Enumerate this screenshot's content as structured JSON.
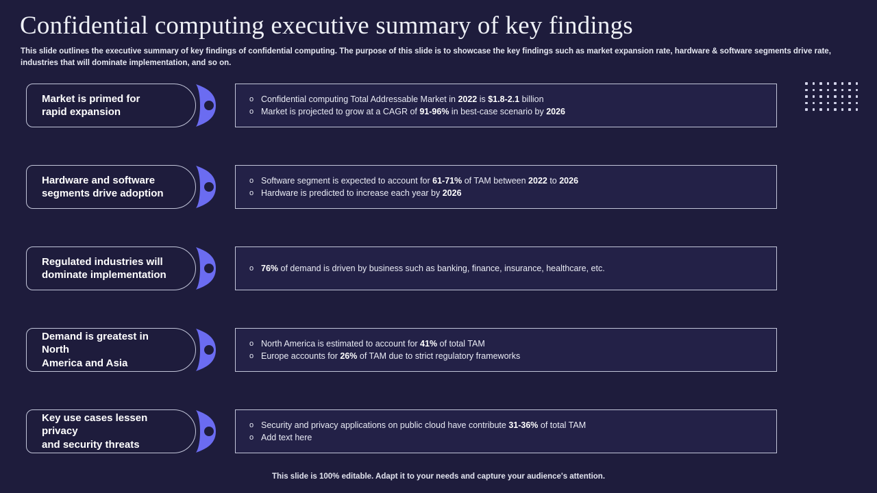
{
  "page": {
    "title": "Confidential computing executive summary of key findings",
    "subtitle": "This slide outlines the executive summary of key findings of confidential computing. The purpose of this slide is to showcase the key findings such as market expansion rate, hardware & software segments drive rate, industries that will dominate implementation, and so on.",
    "footer": "This slide is 100% editable. Adapt it to your needs and capture your audience's attention."
  },
  "colors": {
    "background": "#1e1c3c",
    "box_background": "#232147",
    "border": "#c3c6da",
    "accent_blob": "#6b6cf1",
    "title_text": "#eef0f6",
    "body_text": "#e9ebf4",
    "bold_text": "#ffffff",
    "dot": "#d3d4ea"
  },
  "glyphs": {
    "bullet_marker": "o",
    "blob_icon": "arrow-blob-icon"
  },
  "decor": {
    "dot_rows": 5,
    "dot_cols": 8
  },
  "rows": [
    {
      "label": "Market is primed for\nrapid expansion",
      "bullets": [
        [
          {
            "t": "Confidential computing Total Addressable Market in "
          },
          {
            "t": "2022",
            "b": true
          },
          {
            "t": " is "
          },
          {
            "t": "$1.8-2.1",
            "b": true
          },
          {
            "t": " billion"
          }
        ],
        [
          {
            "t": "Market is projected to grow at a CAGR of "
          },
          {
            "t": "91-96%",
            "b": true
          },
          {
            "t": " in best-case scenario by "
          },
          {
            "t": "2026",
            "b": true
          }
        ]
      ]
    },
    {
      "label": "Hardware and software\nsegments drive adoption",
      "bullets": [
        [
          {
            "t": "Software segment is expected to account for "
          },
          {
            "t": "61-71%",
            "b": true
          },
          {
            "t": " of TAM between "
          },
          {
            "t": "2022",
            "b": true
          },
          {
            "t": " to "
          },
          {
            "t": "2026",
            "b": true
          }
        ],
        [
          {
            "t": "Hardware is predicted to increase each year by "
          },
          {
            "t": "2026",
            "b": true
          }
        ]
      ]
    },
    {
      "label": "Regulated industries will\ndominate implementation",
      "bullets": [
        [
          {
            "t": "76%",
            "b": true
          },
          {
            "t": " of demand is driven by business such as banking, finance, insurance, healthcare, etc."
          }
        ]
      ]
    },
    {
      "label": "Demand is greatest in North\nAmerica and Asia",
      "bullets": [
        [
          {
            "t": "North America is estimated to account for "
          },
          {
            "t": "41%",
            "b": true
          },
          {
            "t": " of total TAM"
          }
        ],
        [
          {
            "t": "Europe accounts for "
          },
          {
            "t": "26%",
            "b": true
          },
          {
            "t": " of TAM due to strict regulatory frameworks"
          }
        ]
      ]
    },
    {
      "label": "Key use cases lessen privacy\nand security threats",
      "bullets": [
        [
          {
            "t": "Security and privacy applications on public cloud have contribute "
          },
          {
            "t": "31-36%",
            "b": true
          },
          {
            "t": " of total TAM"
          }
        ],
        [
          {
            "t": "Add text here"
          }
        ]
      ]
    }
  ]
}
